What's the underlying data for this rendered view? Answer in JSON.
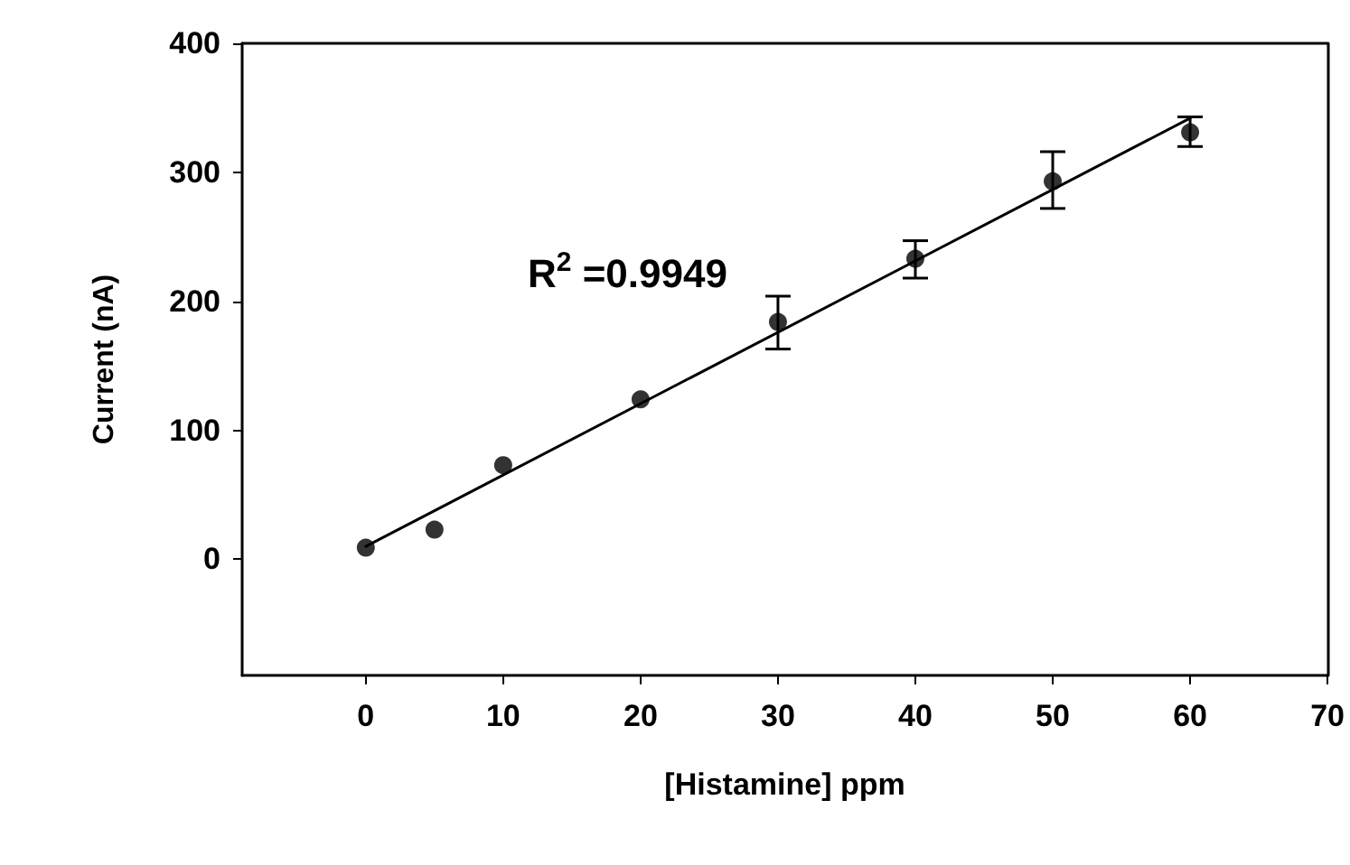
{
  "chart_data": {
    "type": "scatter",
    "xlabel": "[Histamine] ppm",
    "ylabel": "Current (nA)",
    "annotations": [
      "R$^{2}$ =0.9949"
    ],
    "x": [
      0,
      5,
      10,
      20,
      30,
      40,
      50,
      60
    ],
    "series": [
      {
        "color": "#000000",
        "marker": "circle",
        "values": [
          9,
          23,
          73,
          124,
          184,
          233,
          293,
          331
        ],
        "errors": [
          null,
          null,
          null,
          null,
          [
            163,
            204
          ],
          [
            218,
            247
          ],
          [
            272,
            316
          ],
          [
            320,
            343
          ]
        ]
      },
      {
        "type": "line",
        "color": "#000000",
        "x": [
          0,
          60
        ],
        "values": [
          10,
          342
        ],
        "marker": "none",
        "line_style": "solid"
      }
    ],
    "xlim": [
      -9,
      70
    ],
    "xticks": [
      0,
      10,
      20,
      30,
      40,
      50,
      60,
      70
    ],
    "ylim": [
      -90,
      400
    ],
    "yticks": [
      0,
      100,
      200,
      300,
      400
    ],
    "grid": false
  }
}
